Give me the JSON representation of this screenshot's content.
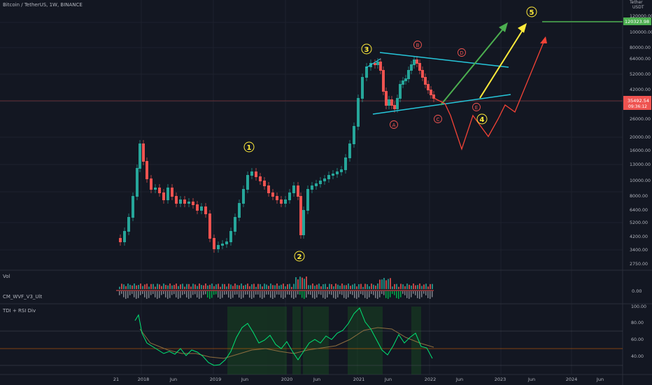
{
  "title": "Bitcoin / TetherUS, 1W, BINANCE",
  "currency_top": "USDT",
  "currency_label": "Tether",
  "price_badge": "120323.98",
  "last_price": "35492.54",
  "countdown": "09:36:12",
  "price_axis": [
    "120000.00",
    "100000.00",
    "80000.00",
    "64000.00",
    "52000.00",
    "42000.00",
    "35492.54",
    "26000.00",
    "20000.00",
    "16000.00",
    "13000.00",
    "10000.00",
    "8000.00",
    "6400.00",
    "5200.00",
    "4200.00",
    "3400.00",
    "2750.00"
  ],
  "volume_label": "Vol",
  "wvf_label": "CM_WVF_V3_Ult",
  "wvf_axis": "0.00",
  "tdi_label": "TDI + RSI Div",
  "tdi_axis": [
    "100.00",
    "80.00",
    "60.00",
    "40.00"
  ],
  "time_axis": [
    "21",
    "2018",
    "Jun",
    "2019",
    "Jun",
    "2020",
    "Jun",
    "2021",
    "Jun",
    "2022",
    "Jun",
    "2023",
    "Jun",
    "2024",
    "Jun"
  ],
  "wave_labels_main": [
    "1",
    "2",
    "3",
    "4",
    "5"
  ],
  "wave_labels_corr": [
    "A",
    "B",
    "C",
    "D",
    "E"
  ],
  "colors": {
    "bg": "#131722",
    "up": "#26a69a",
    "down": "#ef5350",
    "yellow": "#ffeb3b",
    "green_arrow": "#4caf50",
    "red_path": "#f44336",
    "cyan": "#26c6da",
    "badge_green": "#4caf50"
  }
}
